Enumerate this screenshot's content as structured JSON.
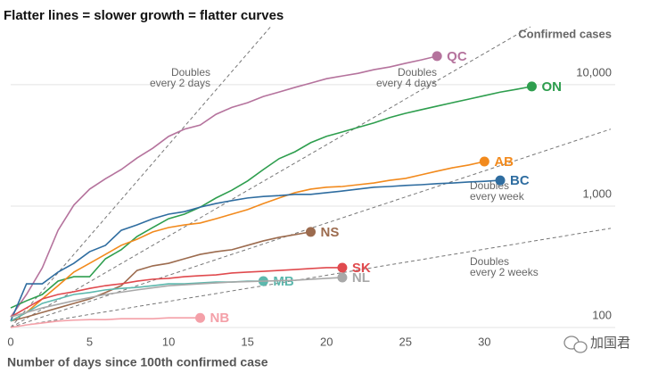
{
  "chart_data": {
    "type": "line",
    "title": "Flatter lines = slower growth = flatter curves",
    "y_label": "Confirmed cases",
    "x_label": "Number of days since 100th confirmed case",
    "watermark": "加国君",
    "log_scale_y": true,
    "grid": true,
    "xlim": [
      0,
      38
    ],
    "xticks": [
      0,
      5,
      10,
      15,
      20,
      25,
      30
    ],
    "ylim": [
      100,
      30000
    ],
    "yticks": [
      100,
      {
        "value": 1000,
        "label": "1,000"
      },
      {
        "value": 10000,
        "label": "10,000"
      }
    ],
    "reference_lines": [
      {
        "label": [
          "Doubles",
          "every 2 days"
        ],
        "doubling_days": 2
      },
      {
        "label": [
          "Doubles",
          "every 4 days"
        ],
        "doubling_days": 4
      },
      {
        "label": [
          "Doubles",
          "every week"
        ],
        "doubling_days": 7
      },
      {
        "label": [
          "Doubles",
          "every 2 weeks"
        ],
        "doubling_days": 14
      }
    ],
    "series": [
      {
        "name": "QC",
        "color": "#b5739d",
        "x": [
          0,
          1,
          2,
          3,
          4,
          5,
          6,
          7,
          8,
          9,
          10,
          11,
          12,
          13,
          14,
          15,
          16,
          17,
          18,
          19,
          20,
          21,
          22,
          23,
          24,
          25,
          26,
          27
        ],
        "values": [
          122,
          187,
          310,
          632,
          1020,
          1380,
          1680,
          2000,
          2490,
          3000,
          3750,
          4300,
          4650,
          5700,
          6500,
          7100,
          8000,
          8700,
          9500,
          10300,
          11200,
          11800,
          12400,
          13300,
          14000,
          15000,
          16000,
          17200
        ]
      },
      {
        "name": "ON",
        "color": "#2e9e4e",
        "x": [
          0,
          1,
          2,
          3,
          4,
          5,
          6,
          7,
          8,
          9,
          10,
          11,
          12,
          13,
          14,
          15,
          16,
          17,
          18,
          19,
          20,
          21,
          22,
          23,
          24,
          25,
          26,
          27,
          28,
          29,
          30,
          31,
          32,
          33
        ],
        "values": [
          145,
          166,
          187,
          241,
          262,
          262,
          368,
          437,
          562,
          666,
          787,
          858,
          980,
          1166,
          1350,
          1610,
          2000,
          2460,
          2800,
          3330,
          3760,
          4080,
          4450,
          4840,
          5360,
          5810,
          6220,
          6660,
          7120,
          7600,
          8120,
          8680,
          9150,
          9670
        ]
      },
      {
        "name": "AB",
        "color": "#f28a1d",
        "x": [
          0,
          1,
          2,
          3,
          4,
          5,
          6,
          7,
          8,
          9,
          10,
          11,
          12,
          13,
          14,
          15,
          16,
          17,
          18,
          19,
          20,
          21,
          22,
          23,
          24,
          25,
          26,
          27,
          28,
          29,
          30
        ],
        "values": [
          113,
          133,
          172,
          221,
          286,
          338,
          400,
          475,
          533,
          613,
          666,
          700,
          725,
          787,
          858,
          935,
          1050,
          1166,
          1290,
          1380,
          1430,
          1450,
          1500,
          1550,
          1630,
          1690,
          1810,
          1940,
          2070,
          2180,
          2330
        ]
      },
      {
        "name": "BC",
        "color": "#2f6da0",
        "x": [
          0,
          1,
          2,
          3,
          4,
          5,
          6,
          7,
          8,
          9,
          10,
          11,
          12,
          13,
          14,
          15,
          16,
          17,
          18,
          19,
          20,
          21,
          22,
          23,
          24,
          25,
          26,
          27,
          28,
          29,
          30,
          31
        ],
        "values": [
          113,
          229,
          229,
          286,
          338,
          421,
          475,
          632,
          700,
          787,
          858,
          900,
          980,
          1050,
          1110,
          1166,
          1200,
          1220,
          1250,
          1250,
          1290,
          1330,
          1380,
          1430,
          1450,
          1480,
          1500,
          1530,
          1550,
          1580,
          1600,
          1630
        ]
      },
      {
        "name": "NS",
        "color": "#9c6b4e",
        "x": [
          0,
          1,
          2,
          3,
          4,
          5,
          6,
          7,
          8,
          9,
          10,
          11,
          12,
          13,
          14,
          15,
          16,
          17,
          18,
          19
        ],
        "values": [
          113,
          122,
          133,
          145,
          158,
          172,
          194,
          221,
          295,
          322,
          338,
          368,
          400,
          421,
          437,
          475,
          517,
          553,
          582,
          613
        ]
      },
      {
        "name": "SK",
        "color": "#e04a4e",
        "x": [
          0,
          1,
          2,
          3,
          4,
          5,
          6,
          7,
          8,
          9,
          10,
          11,
          12,
          13,
          14,
          15,
          16,
          17,
          18,
          19,
          20,
          21
        ],
        "values": [
          122,
          145,
          172,
          187,
          197,
          210,
          221,
          229,
          241,
          250,
          254,
          262,
          267,
          271,
          281,
          286,
          290,
          295,
          300,
          306,
          311,
          311
        ]
      },
      {
        "name": "MB",
        "color": "#5cb8ad",
        "x": [
          0,
          1,
          2,
          3,
          4,
          5,
          6,
          7,
          8,
          9,
          10,
          11,
          12,
          13,
          14,
          15,
          16
        ],
        "values": [
          113,
          133,
          158,
          172,
          187,
          194,
          204,
          210,
          214,
          221,
          229,
          229,
          233,
          237,
          237,
          241,
          241
        ]
      },
      {
        "name": "NL",
        "color": "#a8a8a8",
        "x": [
          0,
          2,
          4,
          6,
          8,
          10,
          12,
          14,
          16,
          18,
          20,
          21
        ],
        "values": [
          122,
          145,
          166,
          187,
          204,
          221,
          229,
          237,
          241,
          245,
          254,
          258
        ]
      },
      {
        "name": "NB",
        "color": "#f4a0a8",
        "x": [
          0,
          1,
          2,
          3,
          4,
          5,
          6,
          7,
          8,
          9,
          10,
          11,
          12
        ],
        "values": [
          100,
          105,
          109,
          113,
          115,
          116,
          116,
          118,
          118,
          118,
          120,
          120,
          120
        ]
      }
    ]
  }
}
